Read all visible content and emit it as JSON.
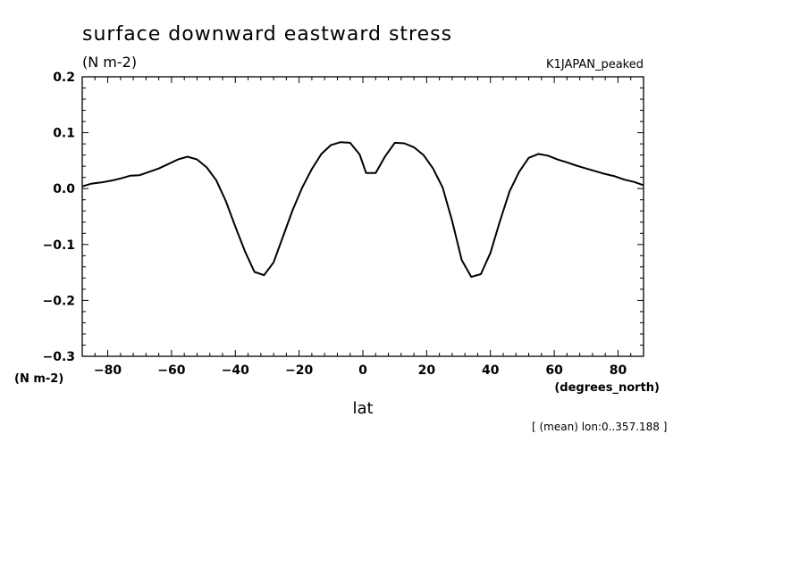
{
  "chart_data": {
    "type": "line",
    "title": "surface downward eastward stress",
    "subtitle_units": "(N m-2)",
    "run_label": "K1JAPAN_peaked",
    "xlabel": "lat",
    "xunits": "(degrees_north)",
    "yunits": "(N m-2)",
    "footnote": "[ (mean) lon:0..357.188 ]",
    "xlim": [
      -88,
      88
    ],
    "ylim": [
      -0.3,
      0.2
    ],
    "x_ticks": [
      -80,
      -60,
      -40,
      -20,
      0,
      20,
      40,
      60,
      80
    ],
    "x_tick_labels": [
      "−80",
      "−60",
      "−40",
      "−20",
      "0",
      "20",
      "40",
      "60",
      "80"
    ],
    "y_ticks": [
      0.2,
      0.1,
      0.0,
      -0.1,
      -0.2,
      -0.3
    ],
    "y_tick_labels": [
      "0.2",
      "0.1",
      "0.0",
      "−0.1",
      "−0.2",
      "−0.3"
    ],
    "grid": false,
    "series": [
      {
        "x": [
          -88,
          -85,
          -82,
          -79,
          -76,
          -73,
          -70,
          -67,
          -64,
          -61,
          -58,
          -55,
          -52,
          -49,
          -46,
          -43,
          -40,
          -37,
          -34,
          -31,
          -28,
          -25,
          -22,
          -19,
          -16,
          -13,
          -10,
          -7,
          -4,
          -1,
          1,
          4,
          7,
          10,
          13,
          16,
          19,
          22,
          25,
          28,
          31,
          34,
          37,
          40,
          43,
          46,
          49,
          52,
          55,
          58,
          61,
          64,
          67,
          70,
          73,
          76,
          79,
          82,
          85,
          88
        ],
        "y": [
          0.004,
          0.009,
          0.011,
          0.014,
          0.018,
          0.023,
          0.024,
          0.03,
          0.036,
          0.044,
          0.052,
          0.057,
          0.052,
          0.038,
          0.015,
          -0.022,
          -0.068,
          -0.112,
          -0.149,
          -0.155,
          -0.132,
          -0.085,
          -0.038,
          0.002,
          0.035,
          0.062,
          0.078,
          0.083,
          0.082,
          0.061,
          0.028,
          0.028,
          0.058,
          0.082,
          0.081,
          0.074,
          0.06,
          0.036,
          0.002,
          -0.058,
          -0.128,
          -0.158,
          -0.153,
          -0.115,
          -0.058,
          -0.005,
          0.03,
          0.055,
          0.062,
          0.059,
          0.052,
          0.047,
          0.041,
          0.036,
          0.031,
          0.026,
          0.022,
          0.016,
          0.012,
          0.006
        ]
      }
    ]
  }
}
